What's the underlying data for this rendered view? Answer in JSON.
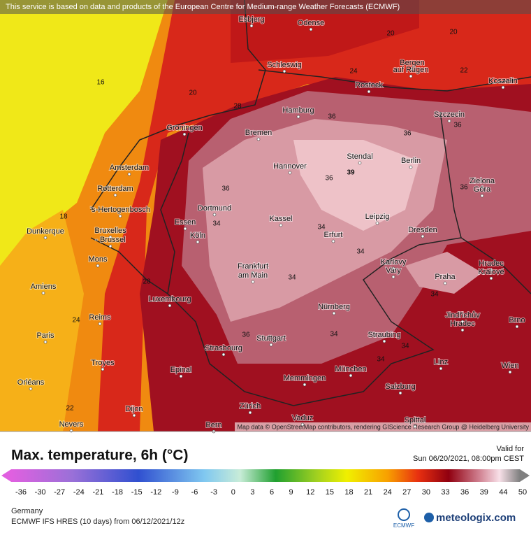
{
  "header": {
    "attribution": "This service is based on data and products of the European Centre for Medium-range Weather Forecasts (ECMWF)"
  },
  "map": {
    "cities": [
      "Esbjerg",
      "Odense",
      "Schleswig",
      "Bergen",
      "auf Rügen",
      "Rostock",
      "Koszalin",
      "Hamburg",
      "Szczecin",
      "Groningen",
      "Bremen",
      "Stendal",
      "Berlin",
      "Amsterdam",
      "Hannover",
      "Rotterdam",
      "Zielona",
      "Góra",
      "Dortmund",
      "'s-Hertogenbosch",
      "Leipzig",
      "Kassel",
      "Essen",
      "Dunkerque",
      "Bruxelles",
      "- Brussel",
      "Erfurt",
      "Köln",
      "Dresden",
      "Karlovy",
      "Vary",
      "Hradec",
      "Králové",
      "Mons",
      "Frankfurt",
      "am Main",
      "Praha",
      "Amiens",
      "Luxembourg",
      "Nürnberg",
      "Jindřichův",
      "Hradec",
      "Brno",
      "Reims",
      "Paris",
      "Stuttgart",
      "Straubing",
      "Strasbourg",
      "Troyes",
      "Linz",
      "Wien",
      "München",
      "Epinal",
      "Memmingen",
      "Orléans",
      "Salzburg",
      "Zürich",
      "Dijon",
      "Vaduz",
      "Nevers",
      "Bern",
      "Spittal"
    ],
    "contour_labels": [
      "16",
      "20",
      "18",
      "24",
      "22",
      "20",
      "20",
      "22",
      "24",
      "36",
      "36",
      "36",
      "39",
      "36",
      "36",
      "36",
      "34",
      "34",
      "34",
      "34",
      "34",
      "34",
      "34",
      "36",
      "34",
      "28",
      "28"
    ],
    "credit": "Map data © OpenStreetMap contributors, rendering GIScience Research Group @ Heidelberg University"
  },
  "legend": {
    "title": "Max. temperature, 6h (°C)",
    "valid_label": "Valid for",
    "valid_time": "Sun 06/20/2021, 08:00pm CEST",
    "ticks": [
      -36,
      -30,
      -27,
      -24,
      -21,
      -18,
      -15,
      -12,
      -9,
      -6,
      -3,
      0,
      3,
      6,
      9,
      12,
      15,
      18,
      21,
      24,
      27,
      30,
      33,
      36,
      39,
      44,
      50
    ]
  },
  "footer": {
    "region": "Germany",
    "model": "ECMWF IFS HRES (10 days) from 06/12/2021/12z",
    "ecmwf": "ECMWF",
    "brand": "meteologix.com"
  }
}
